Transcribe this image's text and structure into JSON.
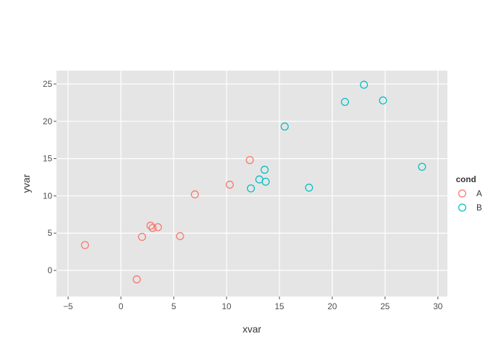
{
  "chart_data": {
    "type": "scatter",
    "title": "",
    "xlabel": "xvar",
    "ylabel": "yvar",
    "xlim": [
      -6.1,
      30.9
    ],
    "ylim": [
      -3.5,
      26.8
    ],
    "xticks": [
      -5,
      0,
      5,
      10,
      15,
      20,
      25,
      30
    ],
    "yticks": [
      0,
      5,
      10,
      15,
      20,
      25
    ],
    "grid": true,
    "legend": {
      "title": "cond",
      "position": "right"
    },
    "series": [
      {
        "name": "A",
        "color": "#f8766d",
        "marker": "open-circle",
        "points": [
          [
            -3.4,
            3.4
          ],
          [
            1.5,
            -1.2
          ],
          [
            2.0,
            4.5
          ],
          [
            2.8,
            6.0
          ],
          [
            3.0,
            5.7
          ],
          [
            3.5,
            5.8
          ],
          [
            5.6,
            4.6
          ],
          [
            7.0,
            10.2
          ],
          [
            10.3,
            11.5
          ],
          [
            12.2,
            14.8
          ]
        ]
      },
      {
        "name": "B",
        "color": "#00bfc4",
        "marker": "open-circle",
        "points": [
          [
            12.3,
            11.0
          ],
          [
            13.1,
            12.2
          ],
          [
            13.6,
            13.5
          ],
          [
            13.7,
            11.9
          ],
          [
            15.5,
            19.3
          ],
          [
            17.8,
            11.1
          ],
          [
            21.2,
            22.6
          ],
          [
            23.0,
            24.9
          ],
          [
            24.8,
            22.8
          ],
          [
            28.5,
            13.9
          ]
        ]
      }
    ]
  }
}
